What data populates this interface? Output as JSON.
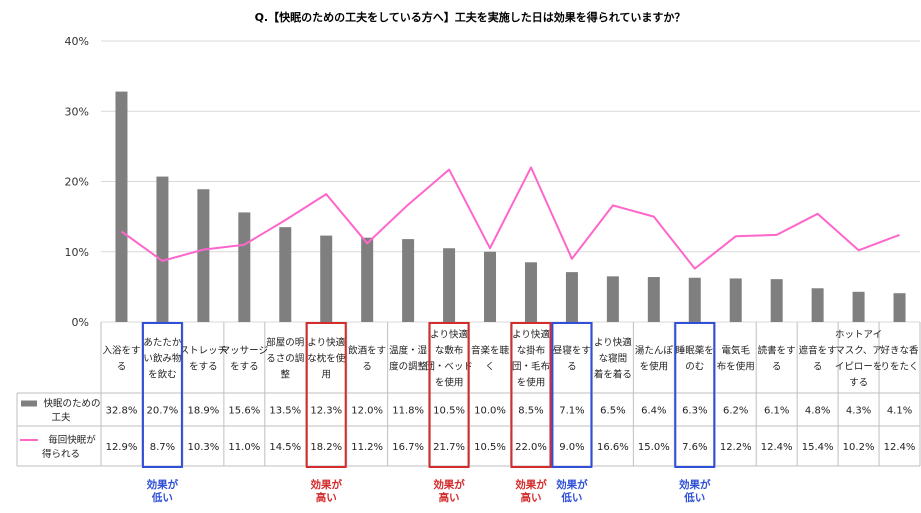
{
  "chart_data": {
    "type": "bar+line",
    "title": "Q.【快眠のための工夫をしている方へ】工夫を実施した日は効果を得られていますか？",
    "ylim": [
      0,
      40
    ],
    "yticks": [
      "0%",
      "10%",
      "20%",
      "30%",
      "40%"
    ],
    "categories": [
      [
        "入浴をす",
        "る"
      ],
      [
        "あたたか",
        "い飲み物",
        "を飲む"
      ],
      [
        "ストレッチ",
        "をする"
      ],
      [
        "マッサージ",
        "をする"
      ],
      [
        "部屋の明",
        "るさの調",
        "整"
      ],
      [
        "より快適",
        "な枕を使",
        "用"
      ],
      [
        "飲酒をす",
        "る"
      ],
      [
        "温度・湿",
        "度の調整"
      ],
      [
        "より快適",
        "な敷布",
        "団・ベッド",
        "を使用"
      ],
      [
        "音楽を聴",
        "く"
      ],
      [
        "より快適",
        "な掛布",
        "団・毛布",
        "を使用"
      ],
      [
        "昼寝をす",
        "る"
      ],
      [
        "より快適",
        "な寝間",
        "着を着る"
      ],
      [
        "湯たんぽ",
        "を使用"
      ],
      [
        "睡眠薬を",
        "のむ"
      ],
      [
        "電気毛",
        "布を使用"
      ],
      [
        "読書をす",
        "る"
      ],
      [
        "遮音をす",
        "る"
      ],
      [
        "ホットアイ",
        "マスク、ア",
        "イピローを",
        "する"
      ],
      [
        "好きな香",
        "りをたく"
      ]
    ],
    "series": [
      {
        "name": "快眠のための工夫",
        "name_lines": [
          "快眠のための",
          "工夫"
        ],
        "kind": "bar",
        "color": "#7f7f7f",
        "values": [
          32.8,
          20.7,
          18.9,
          15.6,
          13.5,
          12.3,
          12.0,
          11.8,
          10.5,
          10.0,
          8.5,
          7.1,
          6.5,
          6.4,
          6.3,
          6.2,
          6.1,
          4.8,
          4.3,
          4.1
        ],
        "labels": [
          "32.8%",
          "20.7%",
          "18.9%",
          "15.6%",
          "13.5%",
          "12.3%",
          "12.0%",
          "11.8%",
          "10.5%",
          "10.0%",
          "8.5%",
          "7.1%",
          "6.5%",
          "6.4%",
          "6.3%",
          "6.2%",
          "6.1%",
          "4.8%",
          "4.3%",
          "4.1%"
        ]
      },
      {
        "name": "毎回快眠が得られる",
        "name_lines": [
          "毎回快眠が",
          "得られる"
        ],
        "kind": "line",
        "color": "#ff66cc",
        "values": [
          12.9,
          8.7,
          10.3,
          11.0,
          14.5,
          18.2,
          11.2,
          16.7,
          21.7,
          10.5,
          22.0,
          9.0,
          16.6,
          15.0,
          7.6,
          12.2,
          12.4,
          15.4,
          10.2,
          12.4
        ],
        "labels": [
          "12.9%",
          "8.7%",
          "10.3%",
          "11.0%",
          "14.5%",
          "18.2%",
          "11.2%",
          "16.7%",
          "21.7%",
          "10.5%",
          "22.0%",
          "9.0%",
          "16.6%",
          "15.0%",
          "7.6%",
          "12.2%",
          "12.4%",
          "15.4%",
          "10.2%",
          "12.4%"
        ]
      }
    ],
    "annotations": [
      {
        "index": 1,
        "lines": [
          "効果が",
          "低い"
        ],
        "color": "#2f4fd8"
      },
      {
        "index": 5,
        "lines": [
          "効果が",
          "高い"
        ],
        "color": "#d42b2b"
      },
      {
        "index": 8,
        "lines": [
          "効果が",
          "高い"
        ],
        "color": "#d42b2b"
      },
      {
        "index": 10,
        "lines": [
          "効果が",
          "高い"
        ],
        "color": "#d42b2b"
      },
      {
        "index": 11,
        "lines": [
          "効果が",
          "低い"
        ],
        "color": "#2f4fd8"
      },
      {
        "index": 14,
        "lines": [
          "効果が",
          "低い"
        ],
        "color": "#2f4fd8"
      }
    ],
    "colors": {
      "grid": "#d9d9d9",
      "border": "#bfbfbf",
      "high": "#d42b2b",
      "low": "#2f4fd8"
    }
  }
}
